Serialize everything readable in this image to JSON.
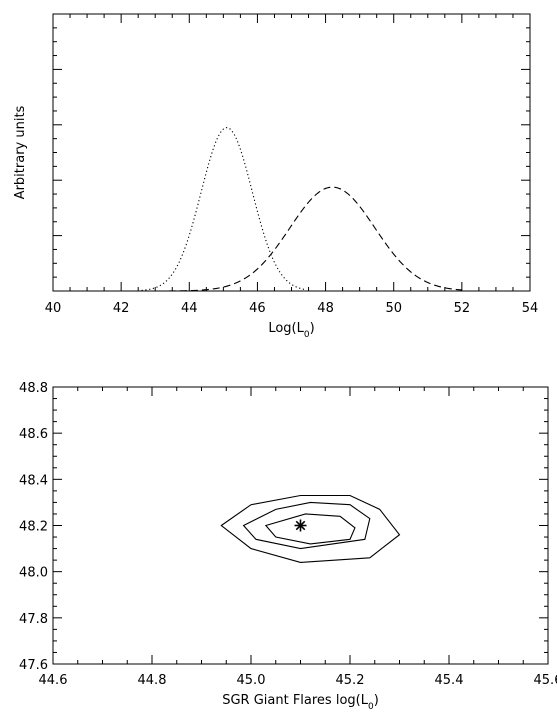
{
  "chart_data": [
    {
      "type": "line",
      "title": "",
      "xlabel": "Log(L",
      "xlabel_sub": "0",
      "xlabel_close": ")",
      "ylabel": "Arbitrary units",
      "xlim": [
        40,
        54
      ],
      "ylim": [
        0,
        1.0
      ],
      "xticks": [
        "40",
        "42",
        "44",
        "46",
        "48",
        "50",
        "52",
        "54"
      ],
      "x_minor_step": 0.5,
      "y_major_ticks": [
        0.2,
        0.4,
        0.6,
        0.8
      ],
      "y_minor_step": 0.05,
      "grid": false,
      "series": [
        {
          "style": "dotted",
          "center": 45.1,
          "sigma": 0.75,
          "amplitude": 0.59,
          "x_range": [
            42.6,
            47.4
          ]
        },
        {
          "style": "dashed",
          "center": 48.2,
          "sigma": 1.25,
          "amplitude": 0.375,
          "x_range": [
            43.4,
            52.0
          ]
        }
      ]
    },
    {
      "type": "line",
      "title": "",
      "xlabel": "SGR Giant Flares log(L",
      "xlabel_sub": "0",
      "xlabel_close": ")",
      "ylabel": "",
      "xlim": [
        44.6,
        45.6
      ],
      "ylim": [
        47.6,
        48.8
      ],
      "xticks": [
        "44.6",
        "44.8",
        "45.0",
        "45.2",
        "45.4",
        "45.6"
      ],
      "yticks": [
        "47.6",
        "47.8",
        "48.0",
        "48.2",
        "48.4",
        "48.6",
        "48.8"
      ],
      "x_minor_step": 0.05,
      "y_minor_step": 0.05,
      "grid": false,
      "best_fit": {
        "x": 45.1,
        "y": 48.2,
        "marker": "asterisk"
      },
      "contours": [
        {
          "level": "outer",
          "points": [
            [
              44.94,
              48.2
            ],
            [
              45.0,
              48.29
            ],
            [
              45.1,
              48.33
            ],
            [
              45.2,
              48.33
            ],
            [
              45.26,
              48.27
            ],
            [
              45.3,
              48.16
            ],
            [
              45.24,
              48.06
            ],
            [
              45.1,
              48.04
            ],
            [
              45.0,
              48.1
            ]
          ]
        },
        {
          "level": "middle",
          "points": [
            [
              44.985,
              48.2
            ],
            [
              45.05,
              48.27
            ],
            [
              45.12,
              48.3
            ],
            [
              45.2,
              48.29
            ],
            [
              45.24,
              48.23
            ],
            [
              45.23,
              48.14
            ],
            [
              45.1,
              48.1
            ],
            [
              45.01,
              48.14
            ]
          ]
        },
        {
          "level": "inner",
          "points": [
            [
              45.03,
              48.2
            ],
            [
              45.11,
              48.25
            ],
            [
              45.18,
              48.24
            ],
            [
              45.21,
              48.19
            ],
            [
              45.2,
              48.14
            ],
            [
              45.12,
              48.12
            ],
            [
              45.05,
              48.15
            ]
          ]
        }
      ]
    }
  ]
}
